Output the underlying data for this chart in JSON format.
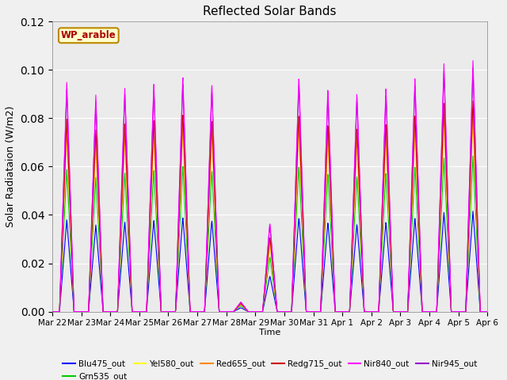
{
  "title": "Reflected Solar Bands",
  "ylabel": "Solar Radiataion (W/m2)",
  "xlabel": "Time",
  "annotation": "WP_arable",
  "ylim": [
    0,
    0.12
  ],
  "band_colors": {
    "Blu475_out": "#0000ff",
    "Grn535_out": "#00cc00",
    "Yel580_out": "#ffff00",
    "Red655_out": "#ff8800",
    "Redg715_out": "#cc0000",
    "Nir840_out": "#ff00ff",
    "Nir945_out": "#9900cc"
  },
  "n_days": 15,
  "background_color": "#f0f0f0",
  "plot_bg_color": "#ebebeb",
  "band_scales": {
    "Blu475_out": 0.4,
    "Grn535_out": 0.62,
    "Yel580_out": 0.77,
    "Red655_out": 0.8,
    "Redg715_out": 0.84,
    "Nir840_out": 1.0,
    "Nir945_out": 0.97
  },
  "nir840_peaks": [
    0.095,
    0.09,
    0.093,
    0.095,
    0.098,
    0.095,
    0.004,
    0.037,
    0.098,
    0.093,
    0.091,
    0.093,
    0.097,
    0.103,
    0.104
  ],
  "tick_labels": [
    "Mar 22",
    "Mar 23",
    "Mar 24",
    "Mar 25",
    "Mar 26",
    "Mar 27",
    "Mar 28",
    "Mar 29",
    "Mar 30",
    "Mar 31",
    "Apr 1",
    "Apr 2",
    "Apr 3",
    "Apr 4",
    "Apr 5",
    "Apr 6"
  ],
  "legend_order": [
    "Blu475_out",
    "Grn535_out",
    "Yel580_out",
    "Red655_out",
    "Redg715_out",
    "Nir840_out",
    "Nir945_out"
  ]
}
